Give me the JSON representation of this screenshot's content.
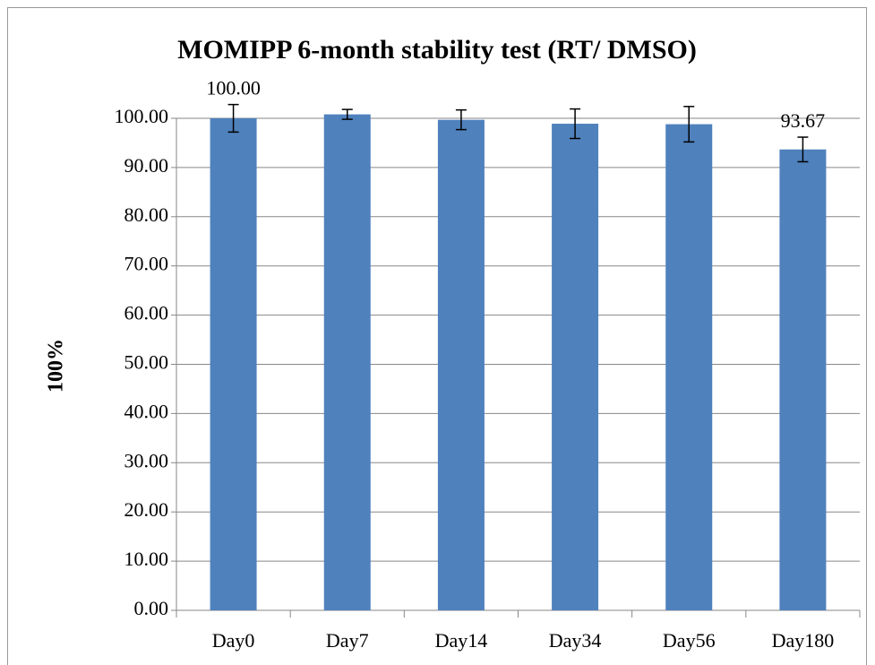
{
  "chart_data": {
    "type": "bar",
    "title": "MOMIPP 6-month stability test (RT/ DMSO)",
    "y_label": "100%",
    "categories": [
      "Day0",
      "Day7",
      "Day14",
      "Day34",
      "Day56",
      "Day180"
    ],
    "values": [
      100.0,
      100.8,
      99.7,
      98.9,
      98.8,
      93.67
    ],
    "errors": [
      2.8,
      1.0,
      2.0,
      3.0,
      3.6,
      2.5
    ],
    "value_labels": [
      "100.00",
      null,
      null,
      null,
      null,
      "93.67"
    ],
    "color": "#4f81bd",
    "ylim": [
      0,
      100
    ],
    "yticks": [
      {
        "value": 0,
        "label": "0.00"
      },
      {
        "value": 10,
        "label": "10.00"
      },
      {
        "value": 20,
        "label": "20.00"
      },
      {
        "value": 30,
        "label": "30.00"
      },
      {
        "value": 40,
        "label": "40.00"
      },
      {
        "value": 50,
        "label": "50.00"
      },
      {
        "value": 60,
        "label": "60.00"
      },
      {
        "value": 70,
        "label": "70.00"
      },
      {
        "value": 80,
        "label": "80.00"
      },
      {
        "value": 90,
        "label": "90.00"
      },
      {
        "value": 100,
        "label": "100.00"
      }
    ],
    "grid": true
  }
}
